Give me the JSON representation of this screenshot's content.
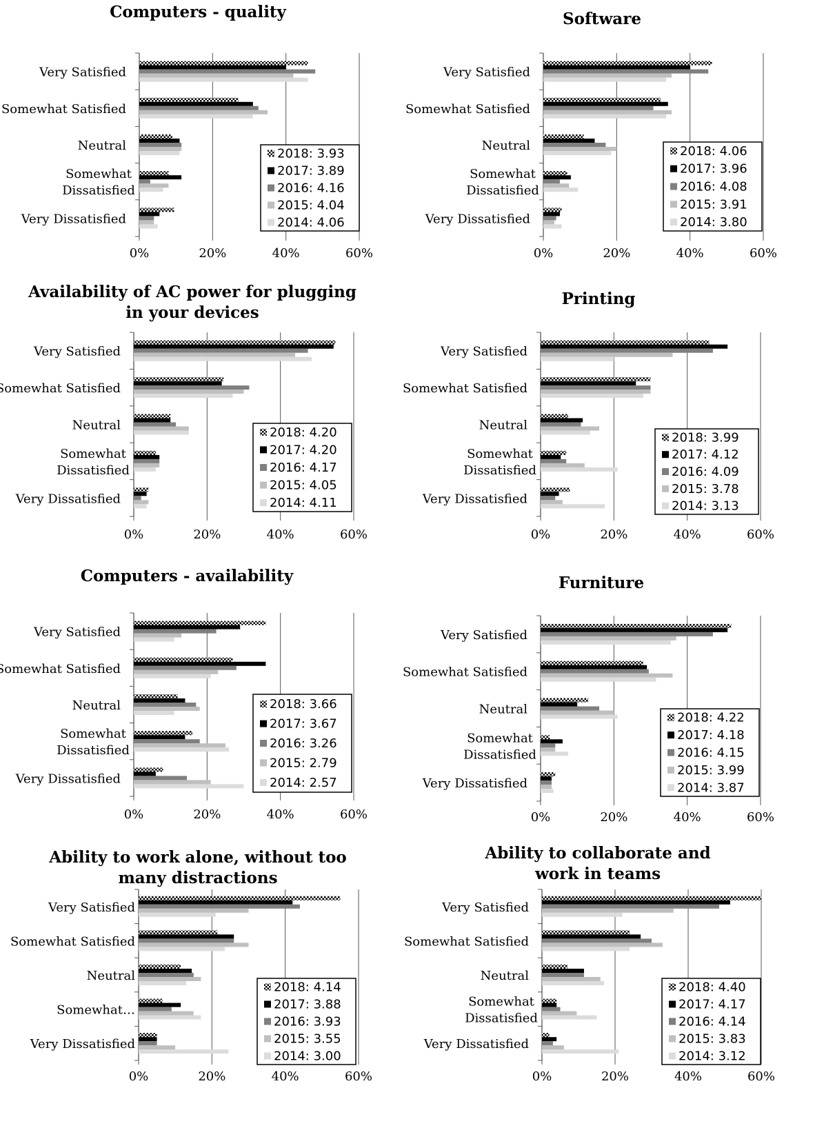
{
  "series_styles": {
    "2018": "pattern",
    "2017": "#000000",
    "2016": "#7f7f7f",
    "2015": "#bfbfbf",
    "2014": "#dcdcdc"
  },
  "axis_color": "#555555",
  "chart_data": [
    {
      "type": "bar",
      "title": "Computers - quality",
      "categories": [
        "Very Satisfied",
        "Somewhat Satisfied",
        "Neutral",
        "Somewhat Dissatisfied",
        "Very Dissatisfied"
      ],
      "xlim": [
        0,
        60
      ],
      "xticks": [
        "0%",
        "20%",
        "40%",
        "60%"
      ],
      "legend_position": "bottom-right",
      "series": [
        {
          "name": "2018: 3.93",
          "key": "2018",
          "values": [
            46,
            27,
            9,
            8,
            9.5
          ]
        },
        {
          "name": "2017: 3.89",
          "key": "2017",
          "values": [
            40,
            31,
            11,
            11.5,
            5.5
          ]
        },
        {
          "name": "2016: 4.16",
          "key": "2016",
          "values": [
            48,
            32.5,
            11.5,
            3,
            4
          ]
        },
        {
          "name": "2015: 4.04",
          "key": "2015",
          "values": [
            42,
            35,
            11.5,
            8,
            4
          ]
        },
        {
          "name": "2014: 4.06",
          "key": "2014",
          "values": [
            46,
            31,
            11,
            6.5,
            5
          ]
        }
      ]
    },
    {
      "type": "bar",
      "title": "Software",
      "categories": [
        "Very Satisfied",
        "Somewhat Satisfied",
        "Neutral",
        "Somewhat Dissatisfied",
        "Very Dissatisfied"
      ],
      "xlim": [
        0,
        60
      ],
      "xticks": [
        "0%",
        "20%",
        "40%",
        "60%"
      ],
      "legend_position": "bottom-right",
      "series": [
        {
          "name": "2018: 4.06",
          "key": "2018",
          "values": [
            46,
            32,
            11,
            6.5,
            5
          ]
        },
        {
          "name": "2017: 3.96",
          "key": "2017",
          "values": [
            40,
            34,
            14,
            7.5,
            4.5
          ]
        },
        {
          "name": "2016: 4.08",
          "key": "2016",
          "values": [
            45,
            30,
            17,
            4.5,
            3.5
          ]
        },
        {
          "name": "2015: 3.91",
          "key": "2015",
          "values": [
            35,
            35,
            20,
            7,
            3
          ]
        },
        {
          "name": "2014: 3.80",
          "key": "2014",
          "values": [
            33.5,
            33.5,
            18.5,
            9.5,
            5
          ]
        }
      ]
    },
    {
      "type": "bar",
      "title": "Availability of AC power for plugging in your devices",
      "title_lines": [
        "Availability of AC power for plugging",
        "in your devices"
      ],
      "categories": [
        "Very Satisfied",
        "Somewhat Satisfied",
        "Neutral",
        "Somewhat Dissatisfied",
        "Very Dissatisfied"
      ],
      "xlim": [
        0,
        60
      ],
      "xticks": [
        "0%",
        "20%",
        "40%",
        "60%"
      ],
      "legend_position": "bottom-right",
      "series": [
        {
          "name": "2018: 4.20",
          "key": "2018",
          "values": [
            55,
            24.5,
            10,
            6,
            4
          ]
        },
        {
          "name": "2017: 4.20",
          "key": "2017",
          "values": [
            54.5,
            24,
            10,
            7,
            3.5
          ]
        },
        {
          "name": "2016: 4.17",
          "key": "2016",
          "values": [
            47.5,
            31.5,
            11.5,
            7,
            2
          ]
        },
        {
          "name": "2015: 4.05",
          "key": "2015",
          "values": [
            44,
            30,
            15,
            7,
            4
          ]
        },
        {
          "name": "2014: 4.11",
          "key": "2014",
          "values": [
            48.5,
            27,
            15,
            6,
            3.5
          ]
        }
      ]
    },
    {
      "type": "bar",
      "title": "Printing",
      "categories": [
        "Very Satisfied",
        "Somewhat Satisfied",
        "Neutral",
        "Somewhat Dissatisfied",
        "Very Dissatisfied"
      ],
      "xlim": [
        0,
        60
      ],
      "xticks": [
        "0%",
        "20%",
        "40%",
        "60%"
      ],
      "legend_position": "bottom-right",
      "series": [
        {
          "name": "2018: 3.99",
          "key": "2018",
          "values": [
            46,
            30,
            7.5,
            7,
            8
          ]
        },
        {
          "name": "2017: 4.12",
          "key": "2017",
          "values": [
            51,
            26,
            11.5,
            5.5,
            5
          ]
        },
        {
          "name": "2016: 4.09",
          "key": "2016",
          "values": [
            47,
            30,
            11,
            7,
            4
          ]
        },
        {
          "name": "2015: 3.78",
          "key": "2015",
          "values": [
            36,
            30,
            16,
            12,
            6
          ]
        },
        {
          "name": "2014: 3.13",
          "key": "2014",
          "values": [
            20,
            28,
            13.5,
            21,
            17.5
          ]
        }
      ]
    },
    {
      "type": "bar",
      "title": "Computers - availability",
      "categories": [
        "Very Satisfied",
        "Somewhat Satisfied",
        "Neutral",
        "Somewhat Dissatisfied",
        "Very Dissatisfied"
      ],
      "xlim": [
        0,
        60
      ],
      "xticks": [
        "0%",
        "20%",
        "40%",
        "60%"
      ],
      "legend_position": "bottom-right",
      "series": [
        {
          "name": "2018: 3.66",
          "key": "2018",
          "values": [
            36,
            27,
            12,
            16,
            8
          ]
        },
        {
          "name": "2017: 3.67",
          "key": "2017",
          "values": [
            29,
            36,
            14,
            14,
            6
          ]
        },
        {
          "name": "2016: 3.26",
          "key": "2016",
          "values": [
            22.5,
            28,
            17,
            18,
            14.5
          ]
        },
        {
          "name": "2015: 2.79",
          "key": "2015",
          "values": [
            13,
            23,
            18,
            25,
            21
          ]
        },
        {
          "name": "2014: 2.57",
          "key": "2014",
          "values": [
            11,
            21,
            11,
            26,
            30
          ]
        }
      ]
    },
    {
      "type": "bar",
      "title": "Furniture",
      "categories": [
        "Very Satisfied",
        "Somewhat Satisfied",
        "Neutral",
        "Somewhat Dissatisfied",
        "Very Dissatisfied"
      ],
      "xlim": [
        0,
        60
      ],
      "xticks": [
        "0%",
        "20%",
        "40%",
        "60%"
      ],
      "legend_position": "bottom-right",
      "series": [
        {
          "name": "2018: 4.22",
          "key": "2018",
          "values": [
            52,
            28,
            13,
            2.5,
            4
          ]
        },
        {
          "name": "2017: 4.18",
          "key": "2017",
          "values": [
            51,
            29,
            10,
            6,
            3
          ]
        },
        {
          "name": "2016: 4.15",
          "key": "2016",
          "values": [
            47,
            29.5,
            16,
            4,
            3
          ]
        },
        {
          "name": "2015: 3.99",
          "key": "2015",
          "values": [
            37,
            36,
            20,
            4,
            3
          ]
        },
        {
          "name": "2014: 3.87",
          "key": "2014",
          "values": [
            35.5,
            31.5,
            21,
            7.5,
            3.5
          ]
        }
      ]
    },
    {
      "type": "bar",
      "title": "Ability to work alone, without too many distractions",
      "title_lines": [
        "Ability to work alone, without too",
        "many distractions"
      ],
      "categories": [
        "Very Satisfied",
        "Somewhat Satisfied",
        "Neutral",
        "Somewhat Dissatisfied",
        "Very Dissatisfied"
      ],
      "category_display": [
        "Very Satisfied",
        "Somewhat Satisfied",
        "Neutral",
        "Somewhat…",
        "Very Dissatisfied"
      ],
      "xlim": [
        0,
        60
      ],
      "xticks": [
        "0%",
        "20%",
        "40%",
        "60%"
      ],
      "legend_position": "bottom-right",
      "series": [
        {
          "name": "2018: 4.14",
          "key": "2018",
          "values": [
            55,
            21.5,
            11.5,
            6.5,
            5
          ]
        },
        {
          "name": "2017: 3.88",
          "key": "2017",
          "values": [
            42,
            26,
            14.5,
            11.5,
            5
          ]
        },
        {
          "name": "2016: 3.93",
          "key": "2016",
          "values": [
            44,
            26,
            15,
            9,
            5
          ]
        },
        {
          "name": "2015: 3.55",
          "key": "2015",
          "values": [
            30,
            30,
            17,
            15,
            10
          ]
        },
        {
          "name": "2014: 3.00",
          "key": "2014",
          "values": [
            21,
            23.5,
            13,
            17,
            24.5
          ]
        }
      ]
    },
    {
      "type": "bar",
      "title": "Ability to collaborate and work in teams",
      "title_lines": [
        "Ability to collaborate and",
        "work in teams"
      ],
      "categories": [
        "Very Satisfied",
        "Somewhat Satisfied",
        "Neutral",
        "Somewhat Dissatisfied",
        "Very Dissatisfied"
      ],
      "xlim": [
        0,
        60
      ],
      "xticks": [
        "0%",
        "20%",
        "40%",
        "60%"
      ],
      "legend_position": "bottom-right",
      "series": [
        {
          "name": "2018: 4.40",
          "key": "2018",
          "values": [
            60,
            24,
            7,
            4,
            2
          ]
        },
        {
          "name": "2017: 4.17",
          "key": "2017",
          "values": [
            51.5,
            27,
            11.5,
            4,
            4
          ]
        },
        {
          "name": "2016: 4.14",
          "key": "2016",
          "values": [
            48.5,
            30,
            11.5,
            5,
            3
          ]
        },
        {
          "name": "2015: 3.83",
          "key": "2015",
          "values": [
            36,
            33,
            16,
            9.5,
            6
          ]
        },
        {
          "name": "2014: 3.12",
          "key": "2014",
          "values": [
            22,
            24,
            17,
            15,
            21
          ]
        }
      ]
    }
  ]
}
